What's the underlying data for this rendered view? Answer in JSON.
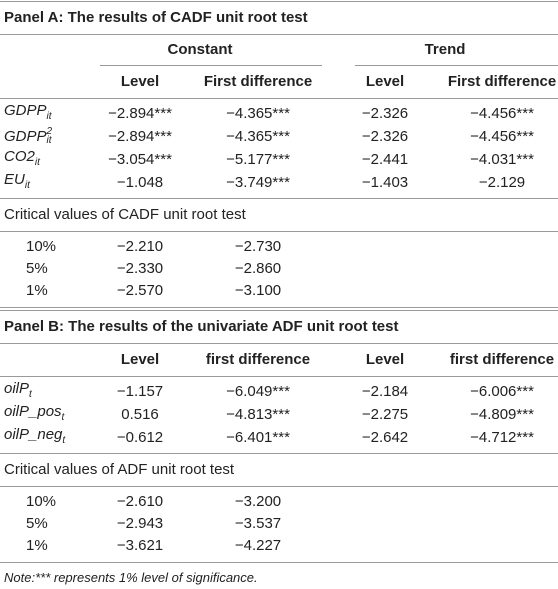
{
  "panel_a": {
    "title": "Panel A: The results of CADF unit root test",
    "group_headers": [
      "Constant",
      "Trend"
    ],
    "column_headers": [
      "Level",
      "First difference",
      "Level",
      "First difference"
    ],
    "rows": [
      {
        "label": {
          "base": "GDPP",
          "sub": "it"
        },
        "values": [
          "−2.894***",
          "−4.365***",
          "−2.326",
          "−4.456***"
        ]
      },
      {
        "label": {
          "base": "GDPP",
          "sup": "2",
          "sub": "it"
        },
        "values": [
          "−2.894***",
          "−4.365***",
          "−2.326",
          "−4.456***"
        ]
      },
      {
        "label": {
          "base": "CO2",
          "sub": "it"
        },
        "values": [
          "−3.054***",
          "−5.177***",
          "−2.441",
          "−4.031***"
        ]
      },
      {
        "label": {
          "base": "EU",
          "sub": "it"
        },
        "values": [
          "−1.048",
          "−3.749***",
          "−1.403",
          "−2.129"
        ]
      }
    ],
    "critical_title": "Critical values of CADF unit root test",
    "critical_rows": [
      {
        "label": "10%",
        "values": [
          "−2.210",
          "−2.730"
        ]
      },
      {
        "label": "5%",
        "values": [
          "−2.330",
          "−2.860"
        ]
      },
      {
        "label": "1%",
        "values": [
          "−2.570",
          "−3.100"
        ]
      }
    ]
  },
  "panel_b": {
    "title": "Panel B: The results of the univariate ADF unit root test",
    "column_headers": [
      "Level",
      "first difference",
      "Level",
      "first difference"
    ],
    "rows": [
      {
        "label": {
          "base": "oilP",
          "sub": "t"
        },
        "values": [
          "−1.157",
          "−6.049***",
          "−2.184",
          "−6.006***"
        ]
      },
      {
        "label": {
          "base": "oilP_pos",
          "sub": "t"
        },
        "values": [
          "0.516",
          "−4.813***",
          "−2.275",
          "−4.809***"
        ]
      },
      {
        "label": {
          "base": "oilP_neg",
          "sub": "t"
        },
        "values": [
          "−0.612",
          "−6.401***",
          "−2.642",
          "−4.712***"
        ]
      }
    ],
    "critical_title": "Critical values of ADF unit root test",
    "critical_rows": [
      {
        "label": "10%",
        "values": [
          "−2.610",
          "−3.200"
        ]
      },
      {
        "label": "5%",
        "values": [
          "−2.943",
          "−3.537"
        ]
      },
      {
        "label": "1%",
        "values": [
          "−3.621",
          "−4.227"
        ]
      }
    ]
  },
  "note": "Note:*** represents 1% level of significance."
}
